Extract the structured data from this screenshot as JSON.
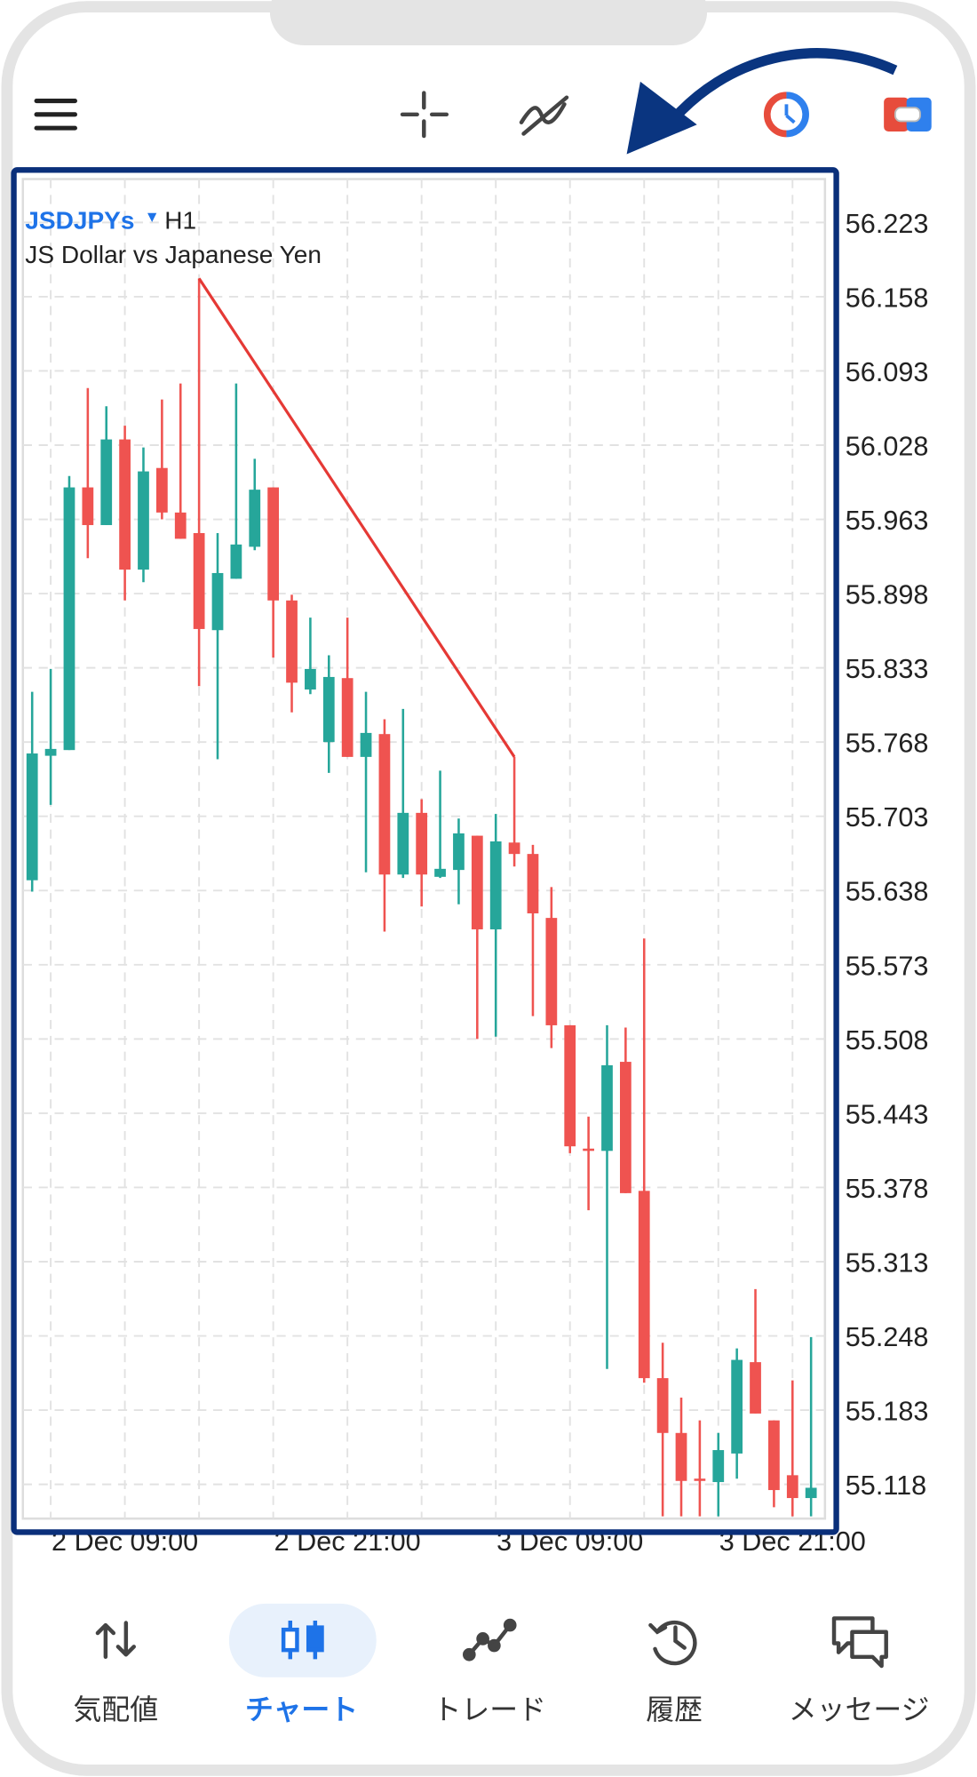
{
  "chart_data": {
    "type": "candlestick",
    "symbol": "JSDJPYs",
    "timeframe": "H1",
    "title": "JS Dollar vs Japanese Yen",
    "up_color": "#26a69a",
    "down_color": "#ef5350",
    "open": [
      55.647,
      55.756,
      55.761,
      55.991,
      55.958,
      56.033,
      55.919,
      56.008,
      55.969,
      55.951,
      55.866,
      55.911,
      55.939,
      55.991,
      55.892,
      55.814,
      55.768,
      55.824,
      55.755,
      55.775,
      55.652,
      55.706,
      55.65,
      55.656,
      55.686,
      55.604,
      55.68,
      55.67,
      55.614,
      55.52,
      55.412,
      55.41,
      55.488,
      55.375,
      55.211,
      55.163,
      55.123,
      55.12,
      55.145,
      55.225,
      55.174,
      55.126,
      55.106
    ],
    "high": [
      55.812,
      55.832,
      56.001,
      56.078,
      56.062,
      56.045,
      56.026,
      56.068,
      56.082,
      56.174,
      55.951,
      56.082,
      56.016,
      55.991,
      55.897,
      55.877,
      55.844,
      55.877,
      55.812,
      55.788,
      55.797,
      55.718,
      55.743,
      55.701,
      55.686,
      55.705,
      55.755,
      55.678,
      55.641,
      55.52,
      55.44,
      55.52,
      55.518,
      55.596,
      55.242,
      55.194,
      55.174,
      55.163,
      55.237,
      55.289,
      55.174,
      55.209,
      55.247
    ],
    "low": [
      55.637,
      55.713,
      55.761,
      55.929,
      55.958,
      55.892,
      55.908,
      55.963,
      55.946,
      55.817,
      55.753,
      55.911,
      55.936,
      55.842,
      55.794,
      55.81,
      55.741,
      55.755,
      55.654,
      55.602,
      55.649,
      55.624,
      55.649,
      55.626,
      55.508,
      55.51,
      55.659,
      55.528,
      55.5,
      55.408,
      55.358,
      55.219,
      55.373,
      55.207,
      55.09,
      55.09,
      55.09,
      55.09,
      55.123,
      55.18,
      55.098,
      55.09,
      55.09
    ],
    "close": [
      55.758,
      55.762,
      55.991,
      55.958,
      56.033,
      55.919,
      56.005,
      55.969,
      55.946,
      55.867,
      55.916,
      55.941,
      55.989,
      55.892,
      55.82,
      55.832,
      55.825,
      55.755,
      55.776,
      55.652,
      55.706,
      55.652,
      55.657,
      55.688,
      55.604,
      55.681,
      55.67,
      55.618,
      55.52,
      55.414,
      55.41,
      55.485,
      55.373,
      55.211,
      55.163,
      55.121,
      55.121,
      55.148,
      55.227,
      55.18,
      55.113,
      55.106,
      55.115
    ],
    "trendline": {
      "x": [
        9,
        26
      ],
      "y": [
        56.174,
        55.755
      ],
      "color": "#e53935"
    },
    "xlim": [
      -0.5,
      42.75
    ],
    "xticks": [
      {
        "value": 5,
        "label": "2 Dec 09:00"
      },
      {
        "value": 17,
        "label": "2 Dec 21:00"
      },
      {
        "value": 29,
        "label": "3 Dec 09:00"
      },
      {
        "value": 41,
        "label": "3 Dec 21:00"
      }
    ],
    "xgrid": [
      1,
      5,
      9,
      13,
      17,
      21,
      25,
      29,
      33,
      37,
      41
    ],
    "ylim": [
      55.088,
      56.261
    ],
    "yticks": [
      55.118,
      55.183,
      55.248,
      55.313,
      55.378,
      55.443,
      55.508,
      55.573,
      55.638,
      55.703,
      55.768,
      55.833,
      55.898,
      55.963,
      56.028,
      56.093,
      56.158,
      56.223
    ],
    "grid": true
  },
  "nav": [
    {
      "label": "気配値"
    },
    {
      "label": "チャート",
      "active": true
    },
    {
      "label": "トレード"
    },
    {
      "label": "履歴"
    },
    {
      "label": "メッセージ"
    }
  ]
}
